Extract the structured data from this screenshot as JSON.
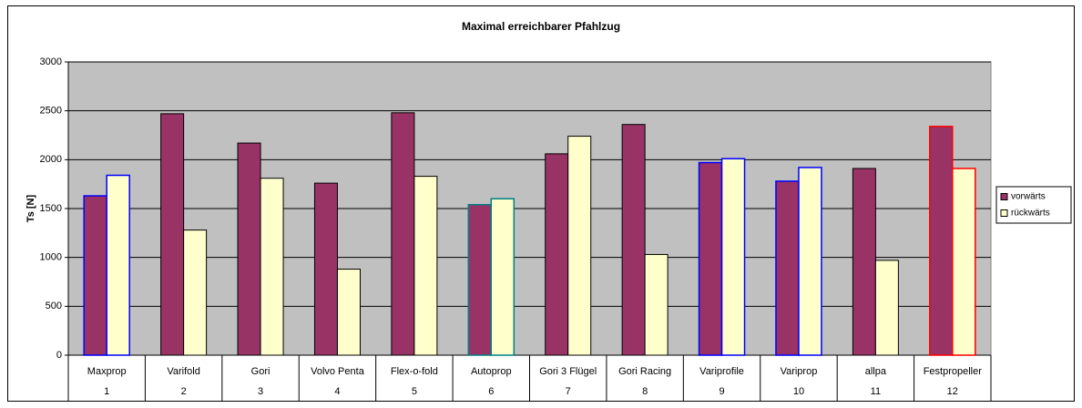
{
  "chart_data": {
    "type": "bar",
    "title": "Maximal erreichbarer Pfahlzug",
    "y_label": "Ts [N]",
    "categories": [
      "Maxprop",
      "Varifold",
      "Gori",
      "Volvo Penta",
      "Flex-o-fold",
      "Autoprop",
      "Gori 3 Flügel",
      "Gori Racing",
      "Variprofile",
      "Variprop",
      "allpa",
      "Festpropeller"
    ],
    "category_numbers": [
      1,
      2,
      3,
      4,
      5,
      6,
      7,
      8,
      9,
      10,
      11,
      12
    ],
    "series": [
      {
        "name": "vorwärts",
        "color": "#993366",
        "values": [
          1630,
          2470,
          2170,
          1760,
          2480,
          1540,
          2060,
          2360,
          1970,
          1780,
          1910,
          2340
        ]
      },
      {
        "name": "rückwärts",
        "color": "#ffffcc",
        "values": [
          1840,
          1280,
          1810,
          880,
          1830,
          1600,
          2240,
          1030,
          2010,
          1920,
          970,
          1910
        ]
      }
    ],
    "edge_colors": [
      "#0000ff",
      "#000000",
      "#000000",
      "#000000",
      "#000000",
      "#008080",
      "#000000",
      "#000000",
      "#0000ff",
      "#0000ff",
      "#000000",
      "#ff0000"
    ],
    "ylim": [
      0,
      3000
    ],
    "yticks": [
      0,
      500,
      1000,
      1500,
      2000,
      2500,
      3000
    ],
    "grid": true,
    "plot_background": "#c0c0c0",
    "legend": "right"
  }
}
